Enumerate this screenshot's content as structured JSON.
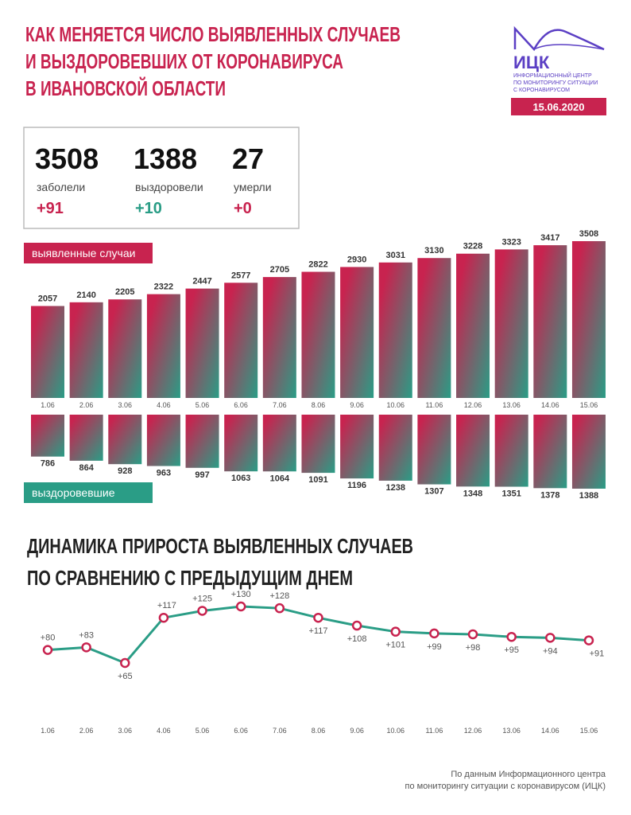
{
  "header": {
    "title": [
      "КАК МЕНЯЕТСЯ ЧИСЛО ВЫЯВЛЕННЫХ СЛУЧАЕВ",
      "И ВЫЗДОРОВЕВШИХ ОТ КОРОНАВИРУСА",
      "В ИВАНОВСКОЙ ОБЛАСТИ"
    ],
    "logo": "ИЦК",
    "logo_text": [
      "ИНФОРМАЦИОННЫЙ ЦЕНТР",
      "ПО МОНИТОРИНГУ СИТУАЦИИ",
      "С КОРОНАВИРУСОМ"
    ],
    "date": "15.06.2020"
  },
  "stats": [
    {
      "value": "3508",
      "label": "заболели",
      "change": "+91",
      "color": "#c8234f"
    },
    {
      "value": "1388",
      "label": "выздоровели",
      "change": "+10",
      "color": "#2a9d86"
    },
    {
      "value": "27",
      "label": "умерли",
      "change": "+0",
      "color": "#c8234f"
    }
  ],
  "chart_data": [
    {
      "type": "bar",
      "title": "выявленные случаи",
      "title_color": "#c8234f",
      "categories": [
        "1.06",
        "2.06",
        "3.06",
        "4.06",
        "5.06",
        "6.06",
        "7.06",
        "8.06",
        "9.06",
        "10.06",
        "11.06",
        "12.06",
        "13.06",
        "14.06",
        "15.06"
      ],
      "values": [
        2057,
        2140,
        2205,
        2322,
        2447,
        2577,
        2705,
        2822,
        2930,
        3031,
        3130,
        3228,
        3323,
        3417,
        3508
      ]
    },
    {
      "type": "bar-down",
      "title": "выздоровевшие",
      "title_color": "#2a9d86",
      "values": [
        786,
        864,
        928,
        963,
        997,
        1063,
        1064,
        1091,
        1196,
        1238,
        1307,
        1348,
        1351,
        1378,
        1388
      ]
    },
    {
      "type": "line",
      "title": [
        "ДИНАМИКА ПРИРОСТА ВЫЯВЛЕННЫХ СЛУЧАЕВ",
        "ПО СРАВНЕНИЮ С ПРЕДЫДУЩИМ ДНЕМ"
      ],
      "categories": [
        "1.06",
        "2.06",
        "3.06",
        "4.06",
        "5.06",
        "6.06",
        "7.06",
        "8.06",
        "9.06",
        "10.06",
        "11.06",
        "12.06",
        "13.06",
        "14.06",
        "15.06"
      ],
      "values": [
        80,
        83,
        65,
        117,
        125,
        130,
        128,
        117,
        108,
        101,
        99,
        98,
        95,
        94,
        91
      ],
      "value_labels": [
        "+80",
        "+83",
        "+65",
        "+117",
        "+125",
        "+130",
        "+128",
        "+117",
        "+108",
        "+101",
        "+99",
        "+98",
        "+95",
        "+94",
        "+91"
      ],
      "color": "#2a9d86",
      "marker_color": "#c8234f"
    }
  ],
  "footer": [
    "По данным Информационного центра",
    "по мониторингу ситуации с коронавирусом (ИЦК)"
  ]
}
